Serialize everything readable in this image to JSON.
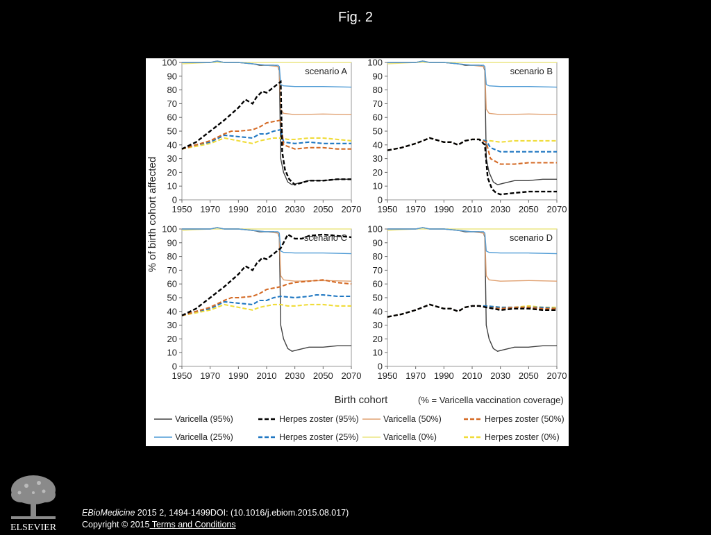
{
  "page": {
    "fig_title": "Fig. 2"
  },
  "citation": {
    "journal": "EBioMedicine",
    "rest": " 2015 2, 1494-1499DOI: (10.1016/j.ebiom.2015.08.017)",
    "copyright": "Copyright © 2015",
    "link": " Terms and Conditions"
  },
  "logo": {
    "text": "ELSEVIER"
  },
  "colors": {
    "v95": "#404040",
    "hz95": "#000000",
    "v50": "#e0a070",
    "hz50": "#d46a25",
    "v25": "#4f9bd5",
    "hz25": "#1f77c2",
    "v0": "#ece584",
    "hz0": "#f0dc3a"
  },
  "chart_data": {
    "type": "line",
    "shared_ylabel": "% of birth cohort affected",
    "xlabel": "Birth cohort",
    "xlabel_note": "(% = Varicella vaccination coverage)",
    "xlim": [
      1950,
      2070
    ],
    "ylim": [
      0,
      100
    ],
    "xticks": [
      "1950",
      "1970",
      "1990",
      "2010",
      "2030",
      "2050",
      "2070"
    ],
    "yticks": [
      "0",
      "10",
      "20",
      "30",
      "40",
      "50",
      "60",
      "70",
      "80",
      "90",
      "100"
    ],
    "legend": [
      {
        "key": "v95",
        "label": "Varicella (95%)",
        "dash": false
      },
      {
        "key": "hz95",
        "label": "Herpes zoster (95%)",
        "dash": true
      },
      {
        "key": "v50",
        "label": "Varicella (50%)",
        "dash": false
      },
      {
        "key": "hz50",
        "label": "Herpes zoster (50%)",
        "dash": true
      },
      {
        "key": "v25",
        "label": "Varicella (25%)",
        "dash": false
      },
      {
        "key": "hz25",
        "label": "Herpes zoster (25%)",
        "dash": true
      },
      {
        "key": "v0",
        "label": "Varicella (0%)",
        "dash": false
      },
      {
        "key": "hz0",
        "label": "Herpes zoster (0%)",
        "dash": true
      }
    ],
    "varicella_series": [
      {
        "key": "v0",
        "x": [
          1950,
          1960,
          1970,
          1980,
          1990,
          2000,
          2010,
          2020,
          2030,
          2050,
          2070
        ],
        "y": [
          99,
          99.5,
          100,
          100,
          100,
          100,
          100,
          100,
          100,
          100,
          100
        ]
      },
      {
        "key": "v95",
        "x": [
          1950,
          1960,
          1970,
          1975,
          1980,
          1990,
          2000,
          2005,
          2010,
          2015,
          2018,
          2019,
          2020,
          2022,
          2025,
          2028,
          2032,
          2040,
          2050,
          2060,
          2070
        ],
        "y": [
          100,
          100,
          100,
          101,
          100,
          100,
          99,
          98,
          98,
          98,
          97,
          94,
          30,
          20,
          13,
          11,
          12,
          14,
          14,
          15,
          15
        ]
      },
      {
        "key": "v50",
        "x": [
          1950,
          1960,
          1970,
          1975,
          1980,
          1990,
          2000,
          2010,
          2018,
          2019,
          2020,
          2022,
          2030,
          2050,
          2070
        ],
        "y": [
          100,
          100,
          100,
          101,
          100,
          100,
          99,
          98,
          97,
          95,
          66,
          63,
          62,
          62.5,
          62
        ]
      },
      {
        "key": "v25",
        "x": [
          1950,
          1960,
          1970,
          1975,
          1980,
          1990,
          2000,
          2010,
          2018,
          2019,
          2020,
          2022,
          2030,
          2050,
          2070
        ],
        "y": [
          100,
          100,
          100,
          101,
          100,
          100,
          99,
          98,
          98,
          97,
          84,
          83,
          82.5,
          82.5,
          82
        ]
      }
    ],
    "panels": [
      {
        "label": "scenario A",
        "series": [
          {
            "key": "hz0",
            "x": [
              1950,
              1960,
              1970,
              1980,
              1990,
              2000,
              2005,
              2010,
              2015,
              2020,
              2025,
              2030,
              2040,
              2050,
              2060,
              2070
            ],
            "y": [
              37,
              39,
              41,
              45,
              43,
              41,
              43,
              44,
              45,
              45,
              44,
              44,
              45,
              45,
              44,
              43
            ]
          },
          {
            "key": "hz25",
            "x": [
              1950,
              1960,
              1970,
              1980,
              1990,
              2000,
              2005,
              2010,
              2015,
              2020,
              2022,
              2030,
              2040,
              2050,
              2060,
              2070
            ],
            "y": [
              37,
              40,
              42,
              47,
              46,
              45,
              48,
              48,
              50,
              51,
              42,
              41,
              42,
              41,
              41,
              41
            ]
          },
          {
            "key": "hz50",
            "x": [
              1950,
              1960,
              1970,
              1980,
              1985,
              1990,
              2000,
              2005,
              2010,
              2015,
              2020,
              2022,
              2030,
              2040,
              2050,
              2060,
              2070
            ],
            "y": [
              37,
              40,
              43,
              48,
              50,
              50,
              51,
              53,
              56,
              57,
              58,
              40,
              37,
              38,
              38,
              37,
              37
            ]
          },
          {
            "key": "hz95",
            "x": [
              1950,
              1960,
              1970,
              1980,
              1990,
              1995,
              2000,
              2003,
              2007,
              2010,
              2015,
              2020,
              2021,
              2023,
              2026,
              2030,
              2040,
              2050,
              2060,
              2070
            ],
            "y": [
              37,
              42,
              50,
              58,
              67,
              73,
              70,
              75,
              79,
              78,
              82,
              86,
              35,
              22,
              15,
              11,
              14,
              14,
              15,
              15
            ]
          }
        ]
      },
      {
        "label": "scenario B",
        "series": [
          {
            "key": "hz0",
            "x": [
              1950,
              1960,
              1970,
              1980,
              1990,
              1995,
              2000,
              2005,
              2010,
              2015,
              2020,
              2023,
              2030,
              2040,
              2050,
              2060,
              2070
            ],
            "y": [
              36,
              38,
              41,
              45,
              42,
              42,
              40,
              43,
              44,
              44,
              43,
              43,
              42,
              43,
              43,
              43,
              43
            ]
          },
          {
            "key": "hz25",
            "x": [
              1950,
              1960,
              1970,
              1980,
              1990,
              1995,
              2000,
              2005,
              2010,
              2015,
              2020,
              2023,
              2030,
              2040,
              2050,
              2060,
              2070
            ],
            "y": [
              36,
              38,
              41,
              45,
              42,
              42,
              40,
              43,
              44,
              44,
              43,
              38,
              35,
              35,
              35,
              35,
              35
            ]
          },
          {
            "key": "hz50",
            "x": [
              1950,
              1960,
              1970,
              1980,
              1990,
              1995,
              2000,
              2005,
              2010,
              2015,
              2020,
              2023,
              2030,
              2040,
              2050,
              2060,
              2070
            ],
            "y": [
              36,
              38,
              41,
              45,
              42,
              42,
              40,
              43,
              44,
              44,
              42,
              30,
              26,
              26,
              27,
              27,
              27
            ]
          },
          {
            "key": "hz95",
            "x": [
              1950,
              1960,
              1970,
              1980,
              1990,
              1995,
              2000,
              2005,
              2010,
              2015,
              2019,
              2021,
              2024,
              2027,
              2030,
              2040,
              2050,
              2060,
              2070
            ],
            "y": [
              36,
              38,
              41,
              45,
              42,
              42,
              40,
              43,
              44,
              44,
              40,
              16,
              8,
              5,
              4,
              5,
              6,
              6,
              6
            ]
          }
        ]
      },
      {
        "label": "scenario C",
        "series": [
          {
            "key": "hz0",
            "x": [
              1950,
              1960,
              1970,
              1980,
              1990,
              2000,
              2005,
              2010,
              2015,
              2020,
              2025,
              2030,
              2040,
              2050,
              2060,
              2070
            ],
            "y": [
              37,
              39,
              41,
              45,
              43,
              41,
              43,
              44,
              45,
              45,
              44,
              44,
              45,
              45,
              44,
              44
            ]
          },
          {
            "key": "hz25",
            "x": [
              1950,
              1960,
              1970,
              1980,
              1990,
              2000,
              2005,
              2010,
              2015,
              2020,
              2030,
              2040,
              2045,
              2050,
              2060,
              2070
            ],
            "y": [
              37,
              40,
              42,
              47,
              46,
              45,
              48,
              48,
              50,
              51,
              50,
              51,
              52,
              52,
              51,
              51
            ]
          },
          {
            "key": "hz50",
            "x": [
              1950,
              1960,
              1970,
              1980,
              1985,
              1990,
              2000,
              2005,
              2010,
              2015,
              2020,
              2025,
              2030,
              2040,
              2050,
              2060,
              2070
            ],
            "y": [
              37,
              40,
              43,
              48,
              50,
              50,
              51,
              53,
              56,
              57,
              58,
              60,
              61,
              62,
              63,
              61,
              60
            ]
          },
          {
            "key": "hz95",
            "x": [
              1950,
              1960,
              1970,
              1980,
              1990,
              1995,
              2000,
              2003,
              2007,
              2010,
              2015,
              2020,
              2025,
              2030,
              2035,
              2040,
              2050,
              2060,
              2070
            ],
            "y": [
              37,
              42,
              50,
              58,
              67,
              73,
              70,
              75,
              79,
              78,
              82,
              86,
              96,
              93,
              93,
              95,
              96,
              95,
              94
            ]
          }
        ]
      },
      {
        "label": "scenario D",
        "series": [
          {
            "key": "hz0",
            "x": [
              1950,
              1960,
              1970,
              1980,
              1990,
              1995,
              2000,
              2005,
              2010,
              2015,
              2020,
              2030,
              2040,
              2050,
              2060,
              2070
            ],
            "y": [
              36,
              38,
              41,
              45,
              42,
              42,
              40,
              43,
              44,
              44,
              44,
              43,
              43,
              44,
              43,
              43
            ]
          },
          {
            "key": "hz25",
            "x": [
              1950,
              1960,
              1970,
              1980,
              1990,
              1995,
              2000,
              2005,
              2010,
              2015,
              2020,
              2030,
              2040,
              2050,
              2060,
              2070
            ],
            "y": [
              36,
              38,
              41,
              45,
              42,
              42,
              40,
              43,
              44,
              44,
              44,
              43,
              43,
              43,
              43,
              42
            ]
          },
          {
            "key": "hz50",
            "x": [
              1950,
              1960,
              1970,
              1980,
              1990,
              1995,
              2000,
              2005,
              2010,
              2015,
              2020,
              2030,
              2040,
              2050,
              2060,
              2070
            ],
            "y": [
              36,
              38,
              41,
              45,
              42,
              42,
              40,
              43,
              44,
              44,
              43,
              42,
              43,
              43,
              42,
              42
            ]
          },
          {
            "key": "hz95",
            "x": [
              1950,
              1960,
              1970,
              1980,
              1990,
              1995,
              2000,
              2005,
              2010,
              2015,
              2020,
              2025,
              2030,
              2040,
              2050,
              2060,
              2070
            ],
            "y": [
              36,
              38,
              41,
              45,
              42,
              42,
              40,
              43,
              44,
              44,
              43,
              42,
              41,
              42,
              42,
              41,
              41
            ]
          }
        ]
      }
    ]
  }
}
